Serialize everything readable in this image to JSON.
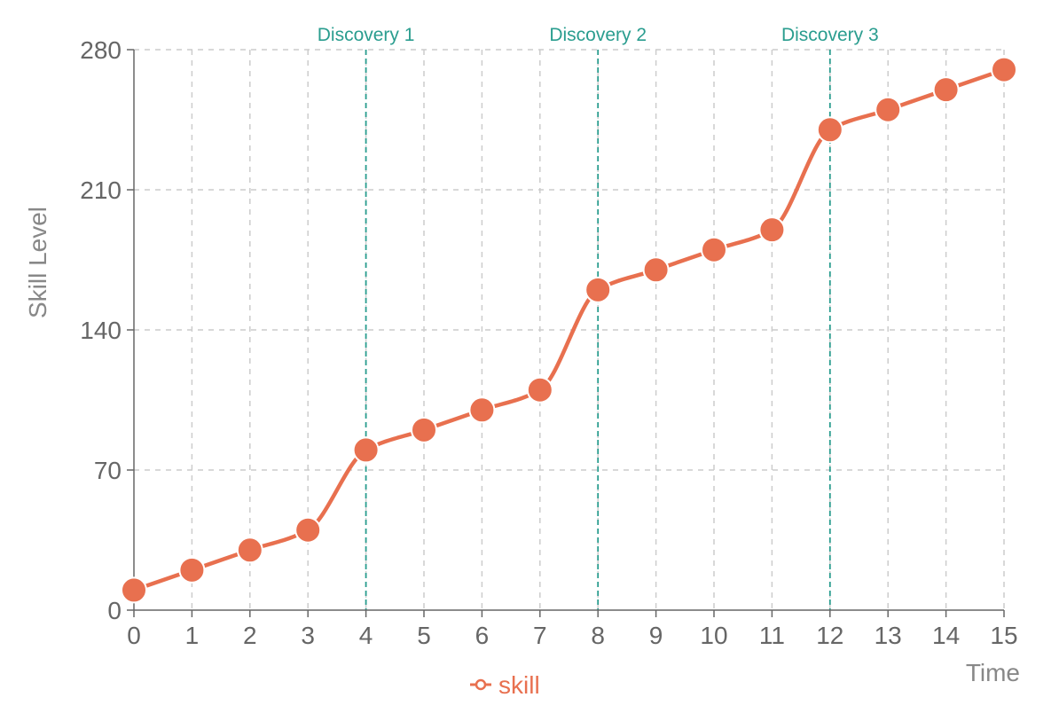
{
  "chart_data": {
    "type": "line",
    "title": "",
    "xlabel": "Time",
    "ylabel": "Skill Level",
    "x": [
      0,
      1,
      2,
      3,
      4,
      5,
      6,
      7,
      8,
      9,
      10,
      11,
      12,
      13,
      14,
      15
    ],
    "series": [
      {
        "name": "skill",
        "color": "#E8704F",
        "values": [
          10,
          20,
          30,
          40,
          80,
          90,
          100,
          110,
          160,
          170,
          180,
          190,
          240,
          250,
          260,
          270
        ]
      }
    ],
    "xlim": [
      0,
      15
    ],
    "ylim": [
      0,
      280
    ],
    "xticks": [
      0,
      1,
      2,
      3,
      4,
      5,
      6,
      7,
      8,
      9,
      10,
      11,
      12,
      13,
      14,
      15
    ],
    "yticks": [
      0,
      70,
      140,
      210,
      280
    ],
    "grid": true,
    "legend": "bottom-center",
    "annotations": [
      {
        "x": 4,
        "label": "Discovery 1"
      },
      {
        "x": 8,
        "label": "Discovery 2"
      },
      {
        "x": 12,
        "label": "Discovery 3"
      }
    ],
    "annotation_color": "#2A9D8F",
    "grid_color": "#CCCCCC",
    "axis_color": "#666666"
  }
}
